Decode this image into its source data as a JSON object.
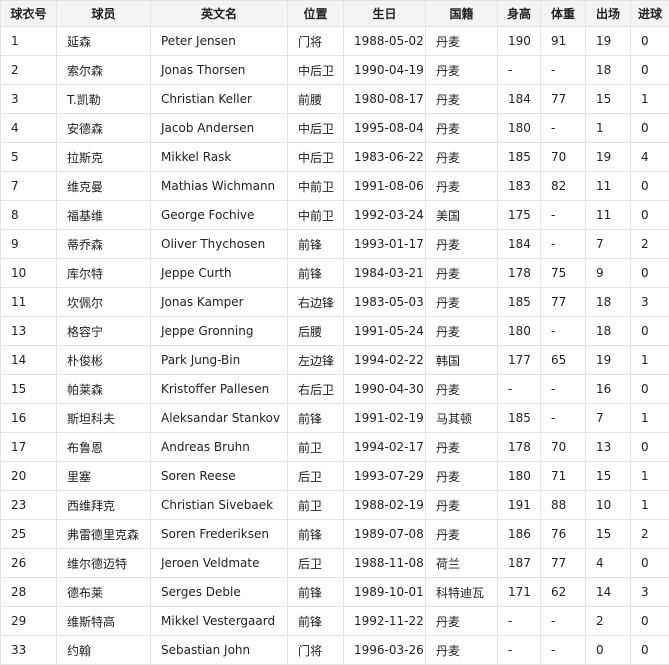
{
  "table": {
    "header": [
      "球衣号",
      "球员",
      "英文名",
      "位置",
      "生日",
      "国籍",
      "身高",
      "体重",
      "出场",
      "进球"
    ],
    "rows": [
      [
        1,
        "延森",
        "Peter Jensen",
        "门将",
        "1988-05-02",
        "丹麦",
        190,
        91,
        19,
        0
      ],
      [
        2,
        "索尔森",
        "Jonas Thorsen",
        "中后卫",
        "1990-04-19",
        "丹麦",
        "-",
        "-",
        18,
        0
      ],
      [
        3,
        "T.凯勒",
        "Christian Keller",
        "前腰",
        "1980-08-17",
        "丹麦",
        184,
        77,
        15,
        1
      ],
      [
        4,
        "安德森",
        "Jacob Andersen",
        "中后卫",
        "1995-08-04",
        "丹麦",
        180,
        "-",
        1,
        0
      ],
      [
        5,
        "拉斯克",
        "Mikkel Rask",
        "中后卫",
        "1983-06-22",
        "丹麦",
        185,
        70,
        19,
        4
      ],
      [
        7,
        "维克曼",
        "Mathias Wichmann",
        "中前卫",
        "1991-08-06",
        "丹麦",
        183,
        82,
        11,
        0
      ],
      [
        8,
        "福基维",
        "George Fochive",
        "中前卫",
        "1992-03-24",
        "美国",
        175,
        "-",
        11,
        0
      ],
      [
        9,
        "蒂乔森",
        "Oliver Thychosen",
        "前锋",
        "1993-01-17",
        "丹麦",
        184,
        "-",
        7,
        2
      ],
      [
        10,
        "库尔特",
        "Jeppe Curth",
        "前锋",
        "1984-03-21",
        "丹麦",
        178,
        75,
        9,
        0
      ],
      [
        11,
        "坎佩尔",
        "Jonas Kamper",
        "右边锋",
        "1983-05-03",
        "丹麦",
        185,
        77,
        18,
        3
      ],
      [
        13,
        "格容宁",
        "Jeppe Gronning",
        "后腰",
        "1991-05-24",
        "丹麦",
        180,
        "-",
        18,
        0
      ],
      [
        14,
        "朴俊彬",
        "Park Jung-Bin",
        "左边锋",
        "1994-02-22",
        "韩国",
        177,
        65,
        19,
        1
      ],
      [
        15,
        "帕莱森",
        "Kristoffer Pallesen",
        "右后卫",
        "1990-04-30",
        "丹麦",
        "-",
        "-",
        16,
        0
      ],
      [
        16,
        "斯坦科夫",
        "Aleksandar Stankov",
        "前锋",
        "1991-02-19",
        "马其顿",
        185,
        "-",
        7,
        1
      ],
      [
        17,
        "布鲁恩",
        "Andreas Bruhn",
        "前卫",
        "1994-02-17",
        "丹麦",
        178,
        70,
        13,
        0
      ],
      [
        20,
        "里塞",
        "Soren Reese",
        "后卫",
        "1993-07-29",
        "丹麦",
        180,
        71,
        15,
        1
      ],
      [
        23,
        "西维拜克",
        "Christian Sivebaek",
        "前卫",
        "1988-02-19",
        "丹麦",
        191,
        88,
        10,
        1
      ],
      [
        25,
        "弗雷德里克森",
        "Soren Frederiksen",
        "前锋",
        "1989-07-08",
        "丹麦",
        186,
        76,
        15,
        2
      ],
      [
        26,
        "维尔德迈特",
        "Jeroen Veldmate",
        "后卫",
        "1988-11-08",
        "荷兰",
        187,
        77,
        4,
        0
      ],
      [
        28,
        "德布莱",
        "Serges Deble",
        "前锋",
        "1989-10-01",
        "科特迪瓦",
        171,
        62,
        14,
        3
      ],
      [
        29,
        "维斯特高",
        "Mikkel Vestergaard",
        "前锋",
        "1992-11-22",
        "丹麦",
        "-",
        "-",
        2,
        0
      ],
      [
        33,
        "约翰",
        "Sebastian John",
        "门将",
        "1996-03-26",
        "丹麦",
        "-",
        "-",
        0,
        0
      ]
    ]
  }
}
